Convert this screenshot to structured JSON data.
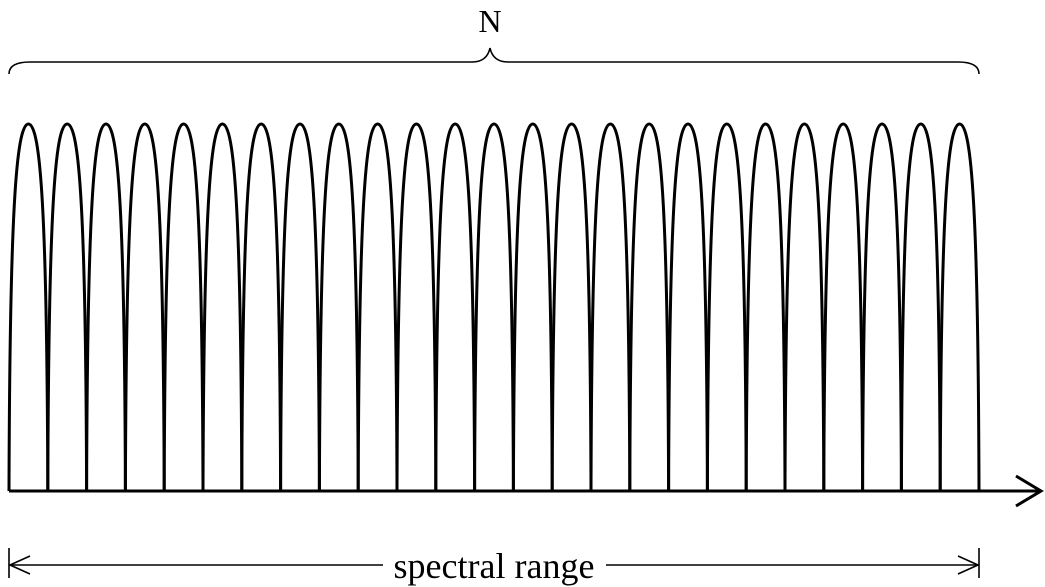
{
  "diagram": {
    "top_label": "N",
    "bottom_label": "spectral range",
    "channel_count": 25,
    "stroke_color": "#000000",
    "background_color": "#ffffff"
  }
}
